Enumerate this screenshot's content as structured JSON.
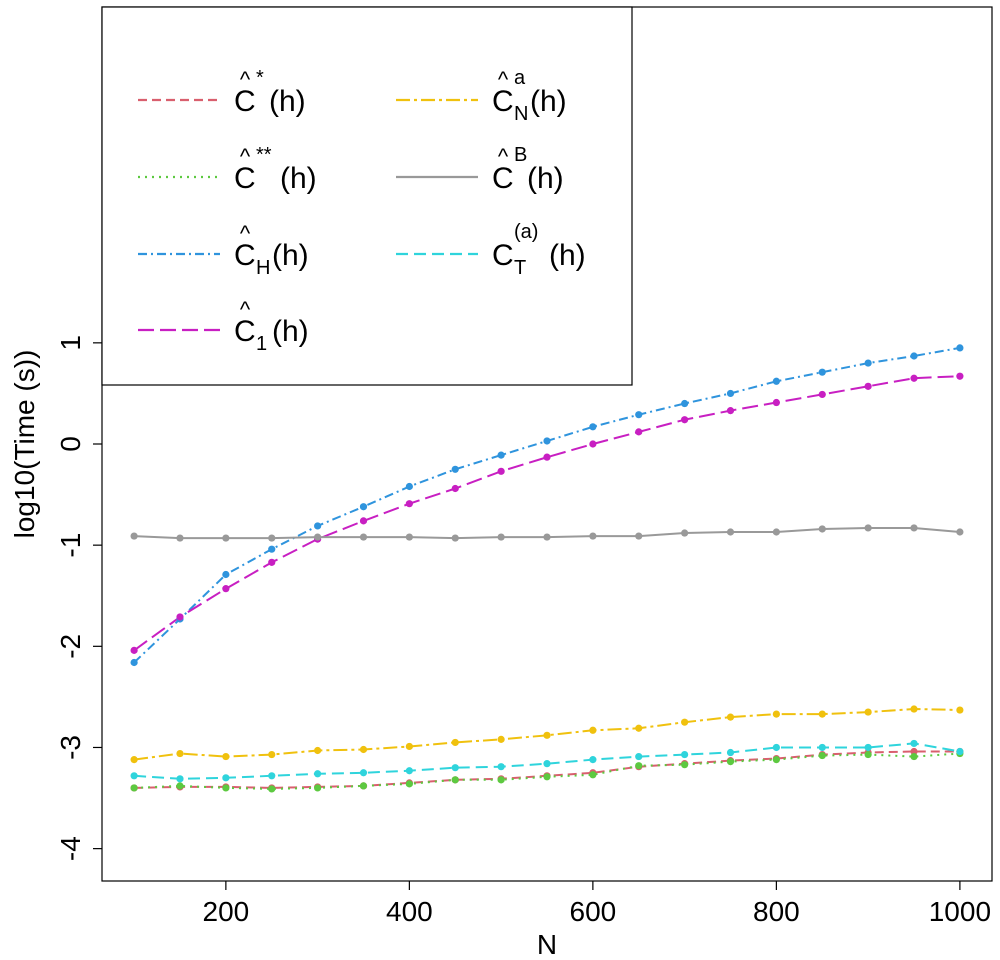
{
  "chart_data": {
    "type": "line",
    "xlabel": "N",
    "ylabel": "log10(Time (s))",
    "xlim": [
      65,
      1035
    ],
    "ylim": [
      -4.32,
      4.32
    ],
    "xticks": [
      200,
      400,
      600,
      800,
      1000
    ],
    "yticks": [
      -4,
      -3,
      -2,
      -1,
      0,
      1
    ],
    "x": [
      100,
      150,
      200,
      250,
      300,
      350,
      400,
      450,
      500,
      550,
      600,
      650,
      700,
      750,
      800,
      850,
      900,
      950,
      1000
    ],
    "legend_position": "top-left",
    "series": [
      {
        "key": "cstar",
        "legend": {
          "base": "C",
          "sup": "*",
          "sub": "",
          "arg": "(h)"
        },
        "color": "#d95f6e",
        "dash": "9,5",
        "values": [
          -3.4,
          -3.39,
          -3.39,
          -3.4,
          -3.39,
          -3.38,
          -3.35,
          -3.32,
          -3.31,
          -3.28,
          -3.25,
          -3.19,
          -3.16,
          -3.13,
          -3.11,
          -3.07,
          -3.05,
          -3.04,
          -3.04
        ]
      },
      {
        "key": "cstarstar",
        "legend": {
          "base": "C",
          "sup": "**",
          "sub": "",
          "arg": "(h)"
        },
        "color": "#5dc940",
        "dash": "2,5",
        "values": [
          -3.4,
          -3.38,
          -3.4,
          -3.41,
          -3.4,
          -3.38,
          -3.36,
          -3.32,
          -3.32,
          -3.29,
          -3.27,
          -3.18,
          -3.17,
          -3.14,
          -3.12,
          -3.08,
          -3.07,
          -3.09,
          -3.06
        ]
      },
      {
        "key": "ch",
        "legend": {
          "base": "C",
          "sup": "",
          "sub": "H",
          "arg": "(h)"
        },
        "color": "#2f94dd",
        "dash": "9,4,2,4",
        "values": [
          -2.16,
          -1.73,
          -1.29,
          -1.04,
          -0.81,
          -0.62,
          -0.42,
          -0.25,
          -0.11,
          0.03,
          0.17,
          0.29,
          0.4,
          0.5,
          0.62,
          0.71,
          0.8,
          0.87,
          0.95
        ]
      },
      {
        "key": "c1",
        "legend": {
          "base": "C",
          "sup": "",
          "sub": "1",
          "arg": "(h)"
        },
        "color": "#c81fc2",
        "dash": "16,6",
        "values": [
          -2.04,
          -1.71,
          -1.43,
          -1.17,
          -0.94,
          -0.76,
          -0.59,
          -0.44,
          -0.27,
          -0.13,
          0.0,
          0.12,
          0.24,
          0.33,
          0.41,
          0.49,
          0.57,
          0.65,
          0.67
        ]
      },
      {
        "key": "cna",
        "legend": {
          "base": "C",
          "sup": "a",
          "sub": "N",
          "arg": "(h)"
        },
        "color": "#f0c10e",
        "dash": "14,4,3,4",
        "values": [
          -3.12,
          -3.06,
          -3.09,
          -3.07,
          -3.03,
          -3.02,
          -2.99,
          -2.95,
          -2.92,
          -2.88,
          -2.83,
          -2.81,
          -2.75,
          -2.7,
          -2.67,
          -2.67,
          -2.65,
          -2.62,
          -2.63
        ]
      },
      {
        "key": "cb",
        "legend": {
          "base": "C",
          "sup": "B",
          "sub": "",
          "arg": "(h)"
        },
        "color": "#999999",
        "dash": "",
        "values": [
          -0.91,
          -0.93,
          -0.93,
          -0.93,
          -0.92,
          -0.92,
          -0.92,
          -0.93,
          -0.92,
          -0.92,
          -0.91,
          -0.91,
          -0.88,
          -0.87,
          -0.87,
          -0.84,
          -0.83,
          -0.83,
          -0.87
        ]
      },
      {
        "key": "cta",
        "legend": {
          "base": "C",
          "sup": "(a)",
          "sub": "T",
          "arg": "(h)",
          "no_hat": true
        },
        "color": "#2fd4dc",
        "dash": "12,6",
        "values": [
          -3.28,
          -3.31,
          -3.3,
          -3.28,
          -3.26,
          -3.25,
          -3.23,
          -3.2,
          -3.19,
          -3.16,
          -3.12,
          -3.09,
          -3.07,
          -3.05,
          -3.0,
          -3.0,
          -3.0,
          -2.96,
          -3.04
        ]
      }
    ]
  }
}
